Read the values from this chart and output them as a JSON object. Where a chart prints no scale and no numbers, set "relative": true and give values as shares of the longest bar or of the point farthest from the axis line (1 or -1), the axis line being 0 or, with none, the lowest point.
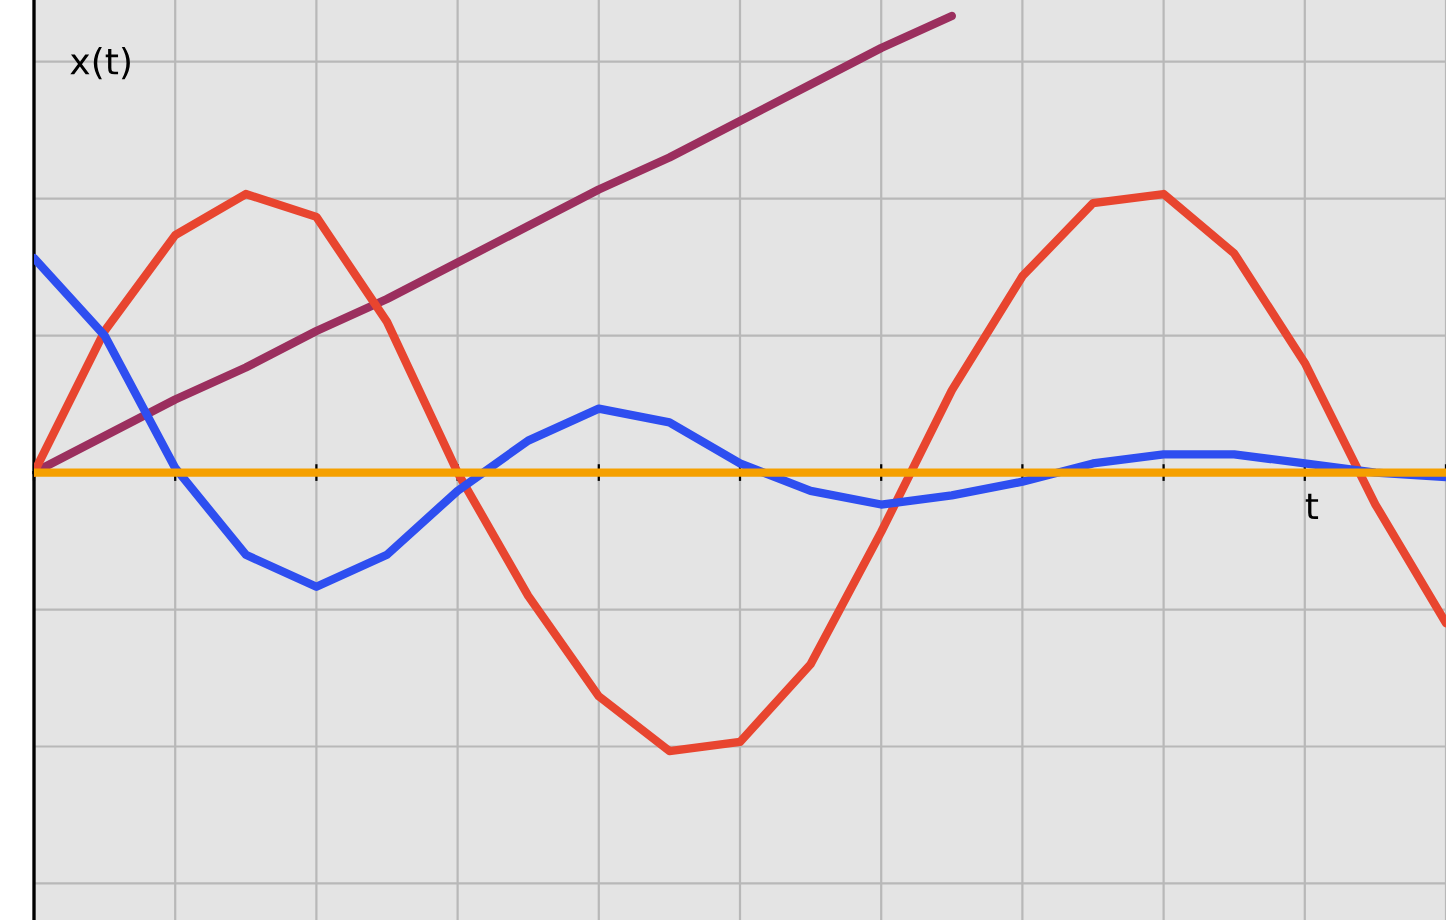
{
  "chart_data": {
    "type": "line",
    "relative": true,
    "xlabel": "t",
    "ylabel": "x(t)",
    "grid": true,
    "legend": false,
    "marker": "none",
    "line_style": "solid",
    "categories": [
      null,
      null,
      null,
      null,
      null,
      null,
      null,
      null,
      null,
      null,
      null,
      null,
      null,
      null,
      null,
      null,
      null,
      null,
      null,
      null,
      null
    ],
    "series": [
      {
        "color": "#9b2f5e",
        "values": [
          0,
          0.08,
          0.16,
          0.23,
          0.31,
          0.38,
          0.46,
          0.54,
          0.62,
          0.69,
          0.77,
          0.85,
          0.93,
          1.0,
          null,
          null,
          null,
          null,
          null,
          null,
          null
        ]
      },
      {
        "color": "#e8452f",
        "values": [
          0,
          0.31,
          0.52,
          0.61,
          0.56,
          0.33,
          0,
          -0.27,
          -0.49,
          -0.61,
          -0.59,
          -0.42,
          -0.13,
          0.18,
          0.43,
          0.59,
          0.61,
          0.48,
          0.24,
          -0.07,
          -0.33
        ]
      },
      {
        "color": "#2e4ef0",
        "values": [
          0.47,
          0.3,
          0.01,
          -0.18,
          -0.25,
          -0.18,
          -0.04,
          0.07,
          0.14,
          0.11,
          0.02,
          -0.04,
          -0.07,
          -0.05,
          -0.02,
          0.02,
          0.04,
          0.04,
          0.02,
          0,
          -0.01
        ]
      },
      {
        "color": "#f5a000",
        "values": [
          0,
          0,
          0,
          0,
          0,
          0,
          0,
          0,
          0,
          0,
          0,
          0,
          0,
          0,
          0,
          0,
          0,
          0,
          0,
          0,
          0
        ]
      }
    ]
  }
}
